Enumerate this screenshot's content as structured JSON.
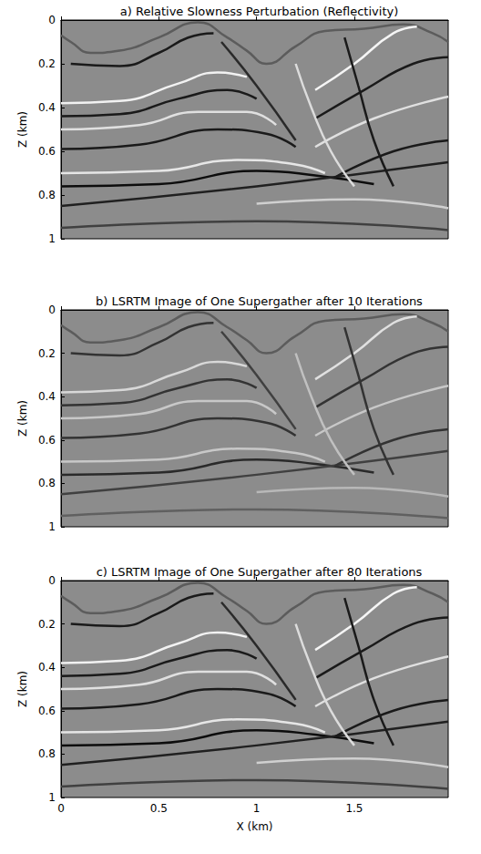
{
  "chart_data": [
    {
      "type": "line",
      "title": "a) Relative Slowness Perturbation (Reflectivity)",
      "ylabel": "Z (km)",
      "xlim": [
        0,
        1.98
      ],
      "ylim": [
        0,
        1
      ],
      "xticks": [
        0,
        0.5,
        1,
        1.5
      ],
      "yticks": [
        0,
        0.2,
        0.4,
        0.6,
        0.8,
        1
      ],
      "grid": false,
      "tick_labels": "y",
      "series": [
        {
          "color": "#5c5c5c",
          "x": [
            0,
            0.05,
            0.15,
            0.3,
            0.5,
            0.7,
            0.85,
            0.95,
            1.05,
            1.2,
            1.35,
            1.55,
            1.75,
            1.9,
            1.98
          ],
          "values": [
            0.07,
            0.1,
            0.15,
            0.14,
            0.08,
            0.01,
            0.08,
            0.14,
            0.2,
            0.12,
            0.05,
            0.04,
            0.02,
            0.06,
            0.1
          ]
        },
        {
          "color": "#1a1a1a",
          "x": [
            0.05,
            0.3,
            0.5,
            0.65,
            0.78
          ],
          "values": [
            0.2,
            0.21,
            0.15,
            0.08,
            0.06
          ]
        },
        {
          "color": "#f2f2f2",
          "x": [
            0,
            0.3,
            0.6,
            0.8,
            0.95
          ],
          "values": [
            0.38,
            0.37,
            0.29,
            0.24,
            0.26
          ]
        },
        {
          "color": "#1a1a1a",
          "x": [
            0,
            0.3,
            0.6,
            0.85,
            1.0
          ],
          "values": [
            0.44,
            0.43,
            0.36,
            0.32,
            0.36
          ]
        },
        {
          "color": "#e0e0e0",
          "x": [
            0,
            0.4,
            0.7,
            0.95,
            1.1
          ],
          "values": [
            0.5,
            0.48,
            0.42,
            0.42,
            0.48
          ]
        },
        {
          "color": "#1a1a1a",
          "x": [
            0,
            0.4,
            0.8,
            1.05,
            1.2
          ],
          "values": [
            0.59,
            0.57,
            0.5,
            0.52,
            0.58
          ]
        },
        {
          "color": "#e6e6e6",
          "x": [
            0,
            0.5,
            0.9,
            1.2,
            1.35
          ],
          "values": [
            0.7,
            0.69,
            0.64,
            0.66,
            0.7
          ]
        },
        {
          "color": "#0d0d0d",
          "x": [
            0,
            0.5,
            1.0,
            1.3,
            1.6
          ],
          "values": [
            0.76,
            0.75,
            0.69,
            0.71,
            0.75
          ]
        },
        {
          "color": "#202020",
          "x": [
            0,
            1.0,
            1.98
          ],
          "values": [
            0.85,
            0.76,
            0.65
          ]
        },
        {
          "color": "#f5f5f5",
          "x": [
            1.3,
            1.5,
            1.7,
            1.82
          ],
          "values": [
            0.32,
            0.2,
            0.06,
            0.03
          ]
        },
        {
          "color": "#1a1a1a",
          "x": [
            1.3,
            1.55,
            1.8,
            1.98
          ],
          "values": [
            0.45,
            0.32,
            0.2,
            0.17
          ]
        },
        {
          "color": "#e0e0e0",
          "x": [
            1.3,
            1.6,
            1.98
          ],
          "values": [
            0.58,
            0.45,
            0.35
          ]
        },
        {
          "color": "#1a1a1a",
          "x": [
            1.4,
            1.7,
            1.98
          ],
          "values": [
            0.72,
            0.6,
            0.55
          ]
        },
        {
          "color": "#2a2a2a",
          "x": [
            0.82,
            1.0,
            1.2
          ],
          "values": [
            0.1,
            0.3,
            0.55
          ]
        },
        {
          "color": "#dcdcdc",
          "x": [
            1.2,
            1.28,
            1.38,
            1.5
          ],
          "values": [
            0.2,
            0.4,
            0.6,
            0.76
          ]
        },
        {
          "color": "#1a1a1a",
          "x": [
            1.45,
            1.52,
            1.6,
            1.7
          ],
          "values": [
            0.08,
            0.3,
            0.55,
            0.76
          ]
        },
        {
          "color": "#d0d0d0",
          "x": [
            1.0,
            1.5,
            1.98
          ],
          "values": [
            0.84,
            0.82,
            0.86
          ]
        },
        {
          "color": "#404040",
          "x": [
            0,
            1.0,
            1.98
          ],
          "values": [
            0.95,
            0.92,
            0.96
          ]
        }
      ]
    },
    {
      "type": "line",
      "title": "b) LSRTM Image of One Supergather after 10 Iterations",
      "ylabel": "Z (km)",
      "xlim": [
        0,
        1.98
      ],
      "ylim": [
        0,
        1
      ],
      "xticks": [
        0,
        0.5,
        1,
        1.5
      ],
      "yticks": [
        0,
        0.2,
        0.4,
        0.6,
        0.8,
        1
      ],
      "grid": false,
      "tick_labels": "y",
      "series": [
        {
          "color": "#5c5c5c",
          "x": [
            0,
            0.05,
            0.15,
            0.3,
            0.5,
            0.7,
            0.85,
            0.95,
            1.05,
            1.2,
            1.35,
            1.55,
            1.75,
            1.9,
            1.98
          ],
          "values": [
            0.07,
            0.1,
            0.15,
            0.14,
            0.08,
            0.01,
            0.08,
            0.14,
            0.2,
            0.12,
            0.05,
            0.04,
            0.02,
            0.06,
            0.1
          ]
        },
        {
          "color": "#333333",
          "x": [
            0.05,
            0.3,
            0.5,
            0.65,
            0.78
          ],
          "values": [
            0.2,
            0.21,
            0.15,
            0.08,
            0.06
          ]
        },
        {
          "color": "#d8d8d8",
          "x": [
            0,
            0.3,
            0.6,
            0.8,
            0.95
          ],
          "values": [
            0.38,
            0.37,
            0.29,
            0.24,
            0.26
          ]
        },
        {
          "color": "#333333",
          "x": [
            0,
            0.3,
            0.6,
            0.85,
            1.0
          ],
          "values": [
            0.44,
            0.43,
            0.36,
            0.32,
            0.36
          ]
        },
        {
          "color": "#c8c8c8",
          "x": [
            0,
            0.4,
            0.7,
            0.95,
            1.1
          ],
          "values": [
            0.5,
            0.48,
            0.42,
            0.42,
            0.48
          ]
        },
        {
          "color": "#333333",
          "x": [
            0,
            0.4,
            0.8,
            1.05,
            1.2
          ],
          "values": [
            0.59,
            0.57,
            0.5,
            0.52,
            0.58
          ]
        },
        {
          "color": "#c8c8c8",
          "x": [
            0,
            0.5,
            0.9,
            1.2,
            1.35
          ],
          "values": [
            0.7,
            0.69,
            0.64,
            0.66,
            0.7
          ]
        },
        {
          "color": "#2a2a2a",
          "x": [
            0,
            0.5,
            1.0,
            1.3,
            1.6
          ],
          "values": [
            0.76,
            0.75,
            0.69,
            0.71,
            0.75
          ]
        },
        {
          "color": "#404040",
          "x": [
            0,
            1.0,
            1.98
          ],
          "values": [
            0.85,
            0.76,
            0.65
          ]
        },
        {
          "color": "#e0e0e0",
          "x": [
            1.3,
            1.5,
            1.7,
            1.82
          ],
          "values": [
            0.32,
            0.2,
            0.06,
            0.03
          ]
        },
        {
          "color": "#333333",
          "x": [
            1.3,
            1.55,
            1.8,
            1.98
          ],
          "values": [
            0.45,
            0.32,
            0.2,
            0.17
          ]
        },
        {
          "color": "#c8c8c8",
          "x": [
            1.3,
            1.6,
            1.98
          ],
          "values": [
            0.58,
            0.45,
            0.35
          ]
        },
        {
          "color": "#333333",
          "x": [
            1.4,
            1.7,
            1.98
          ],
          "values": [
            0.72,
            0.6,
            0.55
          ]
        },
        {
          "color": "#404040",
          "x": [
            0.82,
            1.0,
            1.2
          ],
          "values": [
            0.1,
            0.3,
            0.55
          ]
        },
        {
          "color": "#c0c0c0",
          "x": [
            1.2,
            1.28,
            1.38,
            1.5
          ],
          "values": [
            0.2,
            0.4,
            0.6,
            0.76
          ]
        },
        {
          "color": "#333333",
          "x": [
            1.45,
            1.52,
            1.6,
            1.7
          ],
          "values": [
            0.08,
            0.3,
            0.55,
            0.76
          ]
        },
        {
          "color": "#b8b8b8",
          "x": [
            1.0,
            1.5,
            1.98
          ],
          "values": [
            0.84,
            0.82,
            0.86
          ]
        },
        {
          "color": "#606060",
          "x": [
            0,
            1.0,
            1.98
          ],
          "values": [
            0.95,
            0.92,
            0.96
          ]
        }
      ]
    },
    {
      "type": "line",
      "title": "c) LSRTM Image of One Supergather after 80 Iterations",
      "xlabel": "X (km)",
      "ylabel": "Z (km)",
      "xlim": [
        0,
        1.98
      ],
      "ylim": [
        0,
        1
      ],
      "xticks": [
        0,
        0.5,
        1,
        1.5
      ],
      "yticks": [
        0,
        0.2,
        0.4,
        0.6,
        0.8,
        1
      ],
      "grid": false,
      "series": [
        {
          "color": "#5c5c5c",
          "x": [
            0,
            0.05,
            0.15,
            0.3,
            0.5,
            0.7,
            0.85,
            0.95,
            1.05,
            1.2,
            1.35,
            1.55,
            1.75,
            1.9,
            1.98
          ],
          "values": [
            0.07,
            0.1,
            0.15,
            0.14,
            0.08,
            0.01,
            0.08,
            0.14,
            0.2,
            0.12,
            0.05,
            0.04,
            0.02,
            0.06,
            0.1
          ]
        },
        {
          "color": "#1a1a1a",
          "x": [
            0.05,
            0.3,
            0.5,
            0.65,
            0.78
          ],
          "values": [
            0.2,
            0.21,
            0.15,
            0.08,
            0.06
          ]
        },
        {
          "color": "#f2f2f2",
          "x": [
            0,
            0.3,
            0.6,
            0.8,
            0.95
          ],
          "values": [
            0.38,
            0.37,
            0.29,
            0.24,
            0.26
          ]
        },
        {
          "color": "#1a1a1a",
          "x": [
            0,
            0.3,
            0.6,
            0.85,
            1.0
          ],
          "values": [
            0.44,
            0.43,
            0.36,
            0.32,
            0.36
          ]
        },
        {
          "color": "#e0e0e0",
          "x": [
            0,
            0.4,
            0.7,
            0.95,
            1.1
          ],
          "values": [
            0.5,
            0.48,
            0.42,
            0.42,
            0.48
          ]
        },
        {
          "color": "#1a1a1a",
          "x": [
            0,
            0.4,
            0.8,
            1.05,
            1.2
          ],
          "values": [
            0.59,
            0.57,
            0.5,
            0.52,
            0.58
          ]
        },
        {
          "color": "#e6e6e6",
          "x": [
            0,
            0.5,
            0.9,
            1.2,
            1.35
          ],
          "values": [
            0.7,
            0.69,
            0.64,
            0.66,
            0.7
          ]
        },
        {
          "color": "#0d0d0d",
          "x": [
            0,
            0.5,
            1.0,
            1.3,
            1.6
          ],
          "values": [
            0.76,
            0.75,
            0.69,
            0.71,
            0.75
          ]
        },
        {
          "color": "#202020",
          "x": [
            0,
            1.0,
            1.98
          ],
          "values": [
            0.85,
            0.76,
            0.65
          ]
        },
        {
          "color": "#f5f5f5",
          "x": [
            1.3,
            1.5,
            1.7,
            1.82
          ],
          "values": [
            0.32,
            0.2,
            0.06,
            0.03
          ]
        },
        {
          "color": "#1a1a1a",
          "x": [
            1.3,
            1.55,
            1.8,
            1.98
          ],
          "values": [
            0.45,
            0.32,
            0.2,
            0.17
          ]
        },
        {
          "color": "#e0e0e0",
          "x": [
            1.3,
            1.6,
            1.98
          ],
          "values": [
            0.58,
            0.45,
            0.35
          ]
        },
        {
          "color": "#1a1a1a",
          "x": [
            1.4,
            1.7,
            1.98
          ],
          "values": [
            0.72,
            0.6,
            0.55
          ]
        },
        {
          "color": "#2a2a2a",
          "x": [
            0.82,
            1.0,
            1.2
          ],
          "values": [
            0.1,
            0.3,
            0.55
          ]
        },
        {
          "color": "#dcdcdc",
          "x": [
            1.2,
            1.28,
            1.38,
            1.5
          ],
          "values": [
            0.2,
            0.4,
            0.6,
            0.76
          ]
        },
        {
          "color": "#1a1a1a",
          "x": [
            1.45,
            1.52,
            1.6,
            1.7
          ],
          "values": [
            0.08,
            0.3,
            0.55,
            0.76
          ]
        },
        {
          "color": "#d0d0d0",
          "x": [
            1.0,
            1.5,
            1.98
          ],
          "values": [
            0.84,
            0.82,
            0.86
          ]
        },
        {
          "color": "#404040",
          "x": [
            0,
            1.0,
            1.98
          ],
          "values": [
            0.95,
            0.92,
            0.96
          ]
        }
      ]
    }
  ]
}
